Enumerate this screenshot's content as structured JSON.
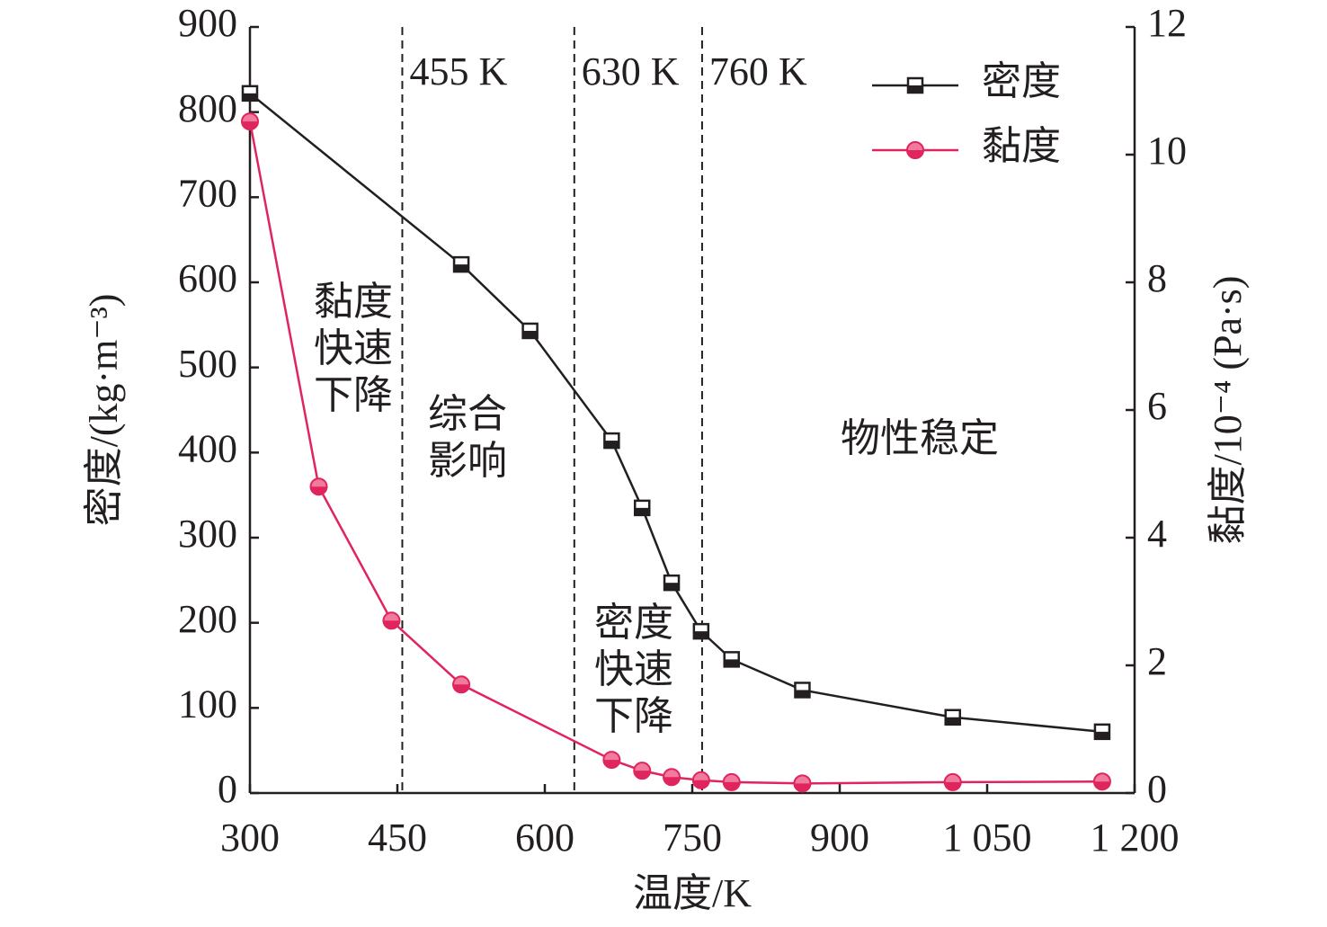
{
  "chart_data": {
    "type": "line",
    "xlabel": "温度/K",
    "ylabel": "密度/(kg·m⁻³)",
    "y2label": "黏度/10⁻⁴ (Pa·s)",
    "xlim": [
      300,
      1200
    ],
    "xticks": [
      300,
      450,
      600,
      750,
      900,
      {
        "value": 1050,
        "label": "1 050"
      },
      {
        "value": 1200,
        "label": "1 200"
      }
    ],
    "ylim": [
      0,
      900
    ],
    "yticks": [
      0,
      100,
      200,
      300,
      400,
      500,
      600,
      700,
      800,
      900
    ],
    "y2lim": [
      0,
      12
    ],
    "y2ticks": [
      0,
      2,
      4,
      6,
      8,
      10,
      12
    ],
    "legend": "upper right",
    "series": [
      {
        "name": "密度",
        "color": "#231f20",
        "marker": "square",
        "x": [
          300,
          515,
          585,
          668,
          699,
          729,
          759,
          790,
          862,
          1015,
          1167
        ],
        "values": [
          822,
          621,
          543,
          414,
          335,
          247,
          190,
          157,
          121,
          89,
          72
        ]
      },
      {
        "name": "黏度",
        "color": "#e0245e",
        "marker": "circle",
        "axis": "y2",
        "x": [
          300,
          370,
          444,
          515,
          668,
          699,
          729,
          759,
          790,
          862,
          1015,
          1167
        ],
        "values": [
          10.52,
          4.8,
          2.7,
          1.7,
          0.52,
          0.35,
          0.25,
          0.2,
          0.17,
          0.15,
          0.17,
          0.18
        ]
      }
    ],
    "vlines": [
      {
        "value": 455,
        "label": "455 K"
      },
      {
        "value": 630,
        "label": "630 K"
      },
      {
        "value": 760,
        "label": "760 K"
      }
    ],
    "annotations": [
      [
        "黏度",
        "快速",
        "下降"
      ],
      [
        "综合",
        "影响"
      ],
      [
        "密度",
        "快速",
        "下降"
      ],
      [
        "物性稳定"
      ]
    ]
  }
}
